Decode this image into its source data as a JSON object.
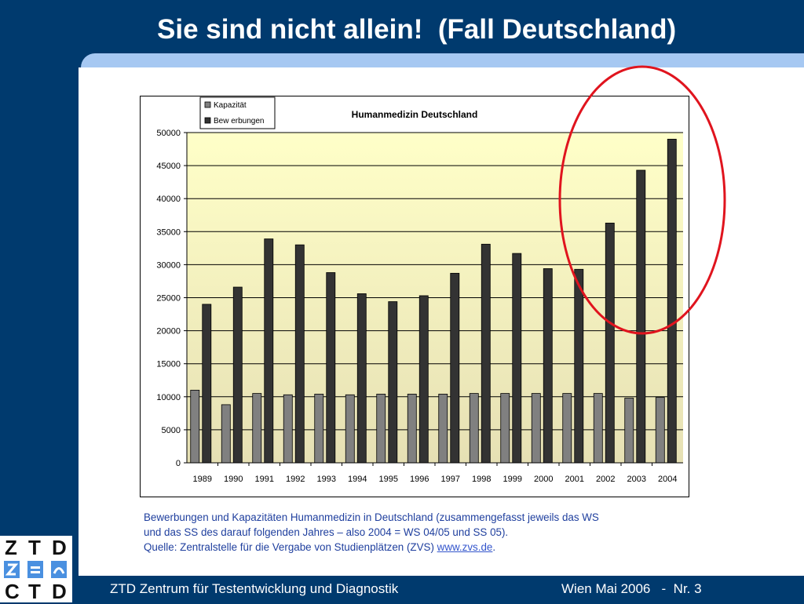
{
  "slide": {
    "title": "Sie sind nicht allein!  (Fall Deutschland)"
  },
  "caption": {
    "line1": "Bewerbungen und Kapazitäten Humanmedizin in Deutschland (zusammengefasst jeweils das WS",
    "line2": "und das SS des darauf folgenden Jahres – also 2004 = WS 04/05 und SS 05).",
    "source_prefix": "Quelle: Zentralstelle für die Vergabe von Studienplätzen (ZVS) ",
    "source_link": "www.zvs.de",
    "source_suffix": "."
  },
  "footer": {
    "left": "ZTD Zentrum für Testentwicklung und Diagnostik",
    "right": "Wien Mai 2006   -  Nr. 3"
  },
  "logo": {
    "letters": [
      "Z",
      "T",
      "D",
      "C",
      "T",
      "D"
    ]
  },
  "colors": {
    "background": "#003a6e",
    "title_bar": "#a6c8f2",
    "plot_bg_top": "#ffffc8",
    "plot_bg_bottom": "#e6e0b4",
    "kapazitaet": "#808080",
    "bewerbungen": "#333333",
    "highlight": "#e0141e",
    "caption": "#1f3f9e"
  },
  "chart_data": {
    "type": "bar",
    "title": "Humanmedizin Deutschland",
    "categories": [
      "1989",
      "1990",
      "1991",
      "1992",
      "1993",
      "1994",
      "1995",
      "1996",
      "1997",
      "1998",
      "1999",
      "2000",
      "2001",
      "2002",
      "2003",
      "2004"
    ],
    "series": [
      {
        "name": "Kapazität",
        "values": [
          11000,
          8800,
          10500,
          10300,
          10400,
          10300,
          10400,
          10400,
          10400,
          10500,
          10500,
          10500,
          10500,
          10500,
          9800,
          9900
        ]
      },
      {
        "name": "Bew erbungen",
        "values": [
          24000,
          26600,
          33900,
          33000,
          28800,
          25600,
          24400,
          25300,
          28700,
          33100,
          31700,
          29400,
          29300,
          36300,
          44300,
          49000
        ]
      }
    ],
    "ylim": [
      0,
      50000
    ],
    "yticks": [
      0,
      5000,
      10000,
      15000,
      20000,
      25000,
      30000,
      35000,
      40000,
      45000,
      50000
    ],
    "grid": true,
    "legend_position": "top-left",
    "highlighted_categories": [
      "2002",
      "2003",
      "2004"
    ]
  }
}
